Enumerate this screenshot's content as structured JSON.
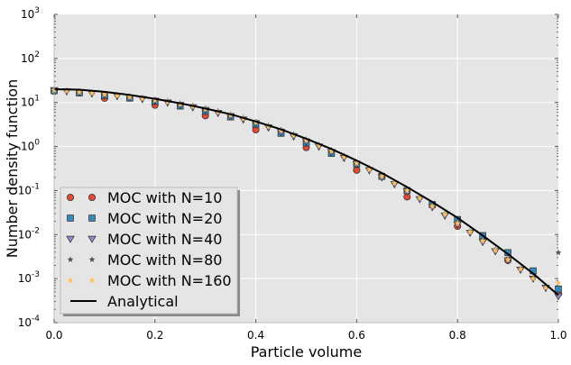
{
  "chart_data": {
    "type": "scatter",
    "title": "",
    "xlabel": "Particle volume",
    "ylabel": "Number density function",
    "xlim": [
      0,
      1
    ],
    "ylim_log10": [
      -4,
      3
    ],
    "y_scale": "log",
    "grid": true,
    "legend_position": "lower-left",
    "x_ticks": [
      "0.0",
      "0.2",
      "0.4",
      "0.6",
      "0.8",
      "1.0"
    ],
    "y_ticks": [
      {
        "mantissa": "10",
        "exp": "-4"
      },
      {
        "mantissa": "10",
        "exp": "-3"
      },
      {
        "mantissa": "10",
        "exp": "-2"
      },
      {
        "mantissa": "10",
        "exp": "-1"
      },
      {
        "mantissa": "10",
        "exp": "0"
      },
      {
        "mantissa": "10",
        "exp": "1"
      },
      {
        "mantissa": "10",
        "exp": "2"
      },
      {
        "mantissa": "10",
        "exp": "3"
      }
    ],
    "series": [
      {
        "name": "MOC with N=10",
        "marker": "circle",
        "color": "#e24a33",
        "x": [
          0.0,
          0.1,
          0.2,
          0.3,
          0.4,
          0.5,
          0.6,
          0.7,
          0.8,
          0.9,
          1.0
        ],
        "y": [
          18.0,
          12.5,
          8.7,
          5.0,
          2.4,
          0.95,
          0.29,
          0.072,
          0.0155,
          0.0026,
          0.00045
        ]
      },
      {
        "name": "MOC with N=20",
        "marker": "square",
        "color": "#348abd",
        "x": [
          0.0,
          0.05,
          0.1,
          0.15,
          0.2,
          0.25,
          0.3,
          0.35,
          0.4,
          0.45,
          0.5,
          0.55,
          0.6,
          0.65,
          0.7,
          0.75,
          0.8,
          0.85,
          0.9,
          0.95,
          1.0
        ],
        "y": [
          18.5,
          16.5,
          14.5,
          12.6,
          10.6,
          8.3,
          6.3,
          4.7,
          3.2,
          2.0,
          1.2,
          0.7,
          0.4,
          0.21,
          0.1,
          0.048,
          0.022,
          0.0095,
          0.0039,
          0.0015,
          0.00058
        ]
      },
      {
        "name": "MOC with N=40",
        "marker": "triangle-down",
        "color": "#988ed5",
        "x": [
          0.0,
          0.025,
          0.05,
          0.075,
          0.1,
          0.125,
          0.15,
          0.175,
          0.2,
          0.225,
          0.25,
          0.275,
          0.3,
          0.325,
          0.35,
          0.375,
          0.4,
          0.425,
          0.45,
          0.475,
          0.5,
          0.525,
          0.55,
          0.575,
          0.6,
          0.625,
          0.65,
          0.675,
          0.7,
          0.725,
          0.75,
          0.775,
          0.8,
          0.825,
          0.85,
          0.875,
          0.9,
          0.925,
          0.95,
          0.975,
          1.0
        ],
        "y": [
          19.0,
          18.0,
          17.0,
          16.0,
          15.0,
          14.0,
          13.0,
          12.0,
          11.0,
          10.0,
          8.8,
          7.8,
          6.8,
          5.8,
          4.9,
          4.1,
          3.4,
          2.7,
          2.15,
          1.7,
          1.3,
          1.0,
          0.75,
          0.55,
          0.4,
          0.29,
          0.2,
          0.14,
          0.095,
          0.064,
          0.042,
          0.027,
          0.017,
          0.011,
          0.0068,
          0.0042,
          0.0026,
          0.0016,
          0.001,
          0.00062,
          0.0004
        ]
      },
      {
        "name": "MOC with N=80",
        "marker": "star",
        "color": "#555555",
        "x": [
          0.0,
          0.025,
          0.05,
          0.075,
          0.1,
          0.125,
          0.15,
          0.175,
          0.2,
          0.225,
          0.25,
          0.275,
          0.3,
          0.325,
          0.35,
          0.375,
          0.4,
          0.425,
          0.45,
          0.475,
          0.5,
          0.525,
          0.55,
          0.575,
          0.6,
          0.625,
          0.65,
          0.675,
          0.7,
          0.725,
          0.75,
          0.775,
          0.8,
          0.825,
          0.85,
          0.875,
          0.9,
          0.925,
          0.95,
          0.975,
          1.0
        ],
        "y": [
          19.5,
          18.8,
          17.8,
          16.8,
          15.8,
          14.8,
          13.8,
          12.8,
          11.8,
          10.8,
          9.6,
          8.5,
          7.4,
          6.4,
          5.4,
          4.5,
          3.7,
          3.0,
          2.4,
          1.9,
          1.45,
          1.1,
          0.83,
          0.61,
          0.44,
          0.32,
          0.225,
          0.155,
          0.105,
          0.07,
          0.046,
          0.03,
          0.019,
          0.012,
          0.0075,
          0.0046,
          0.0028,
          0.0017,
          0.00105,
          0.00064,
          0.0039
        ]
      },
      {
        "name": "MOC with N=160",
        "marker": "star",
        "color": "#fbc15e",
        "x": [
          0.0,
          0.025,
          0.05,
          0.075,
          0.1,
          0.125,
          0.15,
          0.175,
          0.2,
          0.225,
          0.25,
          0.275,
          0.3,
          0.325,
          0.35,
          0.375,
          0.4,
          0.425,
          0.45,
          0.475,
          0.5,
          0.525,
          0.55,
          0.575,
          0.6,
          0.625,
          0.65,
          0.675,
          0.7,
          0.725,
          0.75,
          0.775,
          0.8,
          0.825,
          0.85,
          0.875,
          0.9,
          0.925,
          0.95,
          0.975,
          1.0
        ],
        "y": [
          19.0,
          18.3,
          17.3,
          16.3,
          15.3,
          14.3,
          13.3,
          12.3,
          11.3,
          10.3,
          9.2,
          8.1,
          7.1,
          6.1,
          5.2,
          4.3,
          3.55,
          2.85,
          2.3,
          1.8,
          1.38,
          1.05,
          0.79,
          0.58,
          0.42,
          0.3,
          0.21,
          0.148,
          0.1,
          0.067,
          0.044,
          0.029,
          0.018,
          0.0115,
          0.0072,
          0.0044,
          0.0027,
          0.00165,
          0.001,
          0.00062,
          0.0008
        ]
      },
      {
        "name": "Analytical",
        "marker": "line",
        "color": "#000000",
        "x": [
          0.0,
          0.05,
          0.1,
          0.15,
          0.2,
          0.25,
          0.3,
          0.35,
          0.4,
          0.45,
          0.5,
          0.55,
          0.6,
          0.65,
          0.7,
          0.75,
          0.8,
          0.85,
          0.9,
          0.95,
          1.0
        ],
        "y": [
          20.0,
          19.5,
          17.5,
          14.8,
          12.1,
          9.6,
          7.3,
          5.4,
          3.7,
          2.45,
          1.5,
          0.88,
          0.48,
          0.25,
          0.12,
          0.055,
          0.024,
          0.0095,
          0.0036,
          0.0013,
          0.00042
        ]
      }
    ]
  }
}
